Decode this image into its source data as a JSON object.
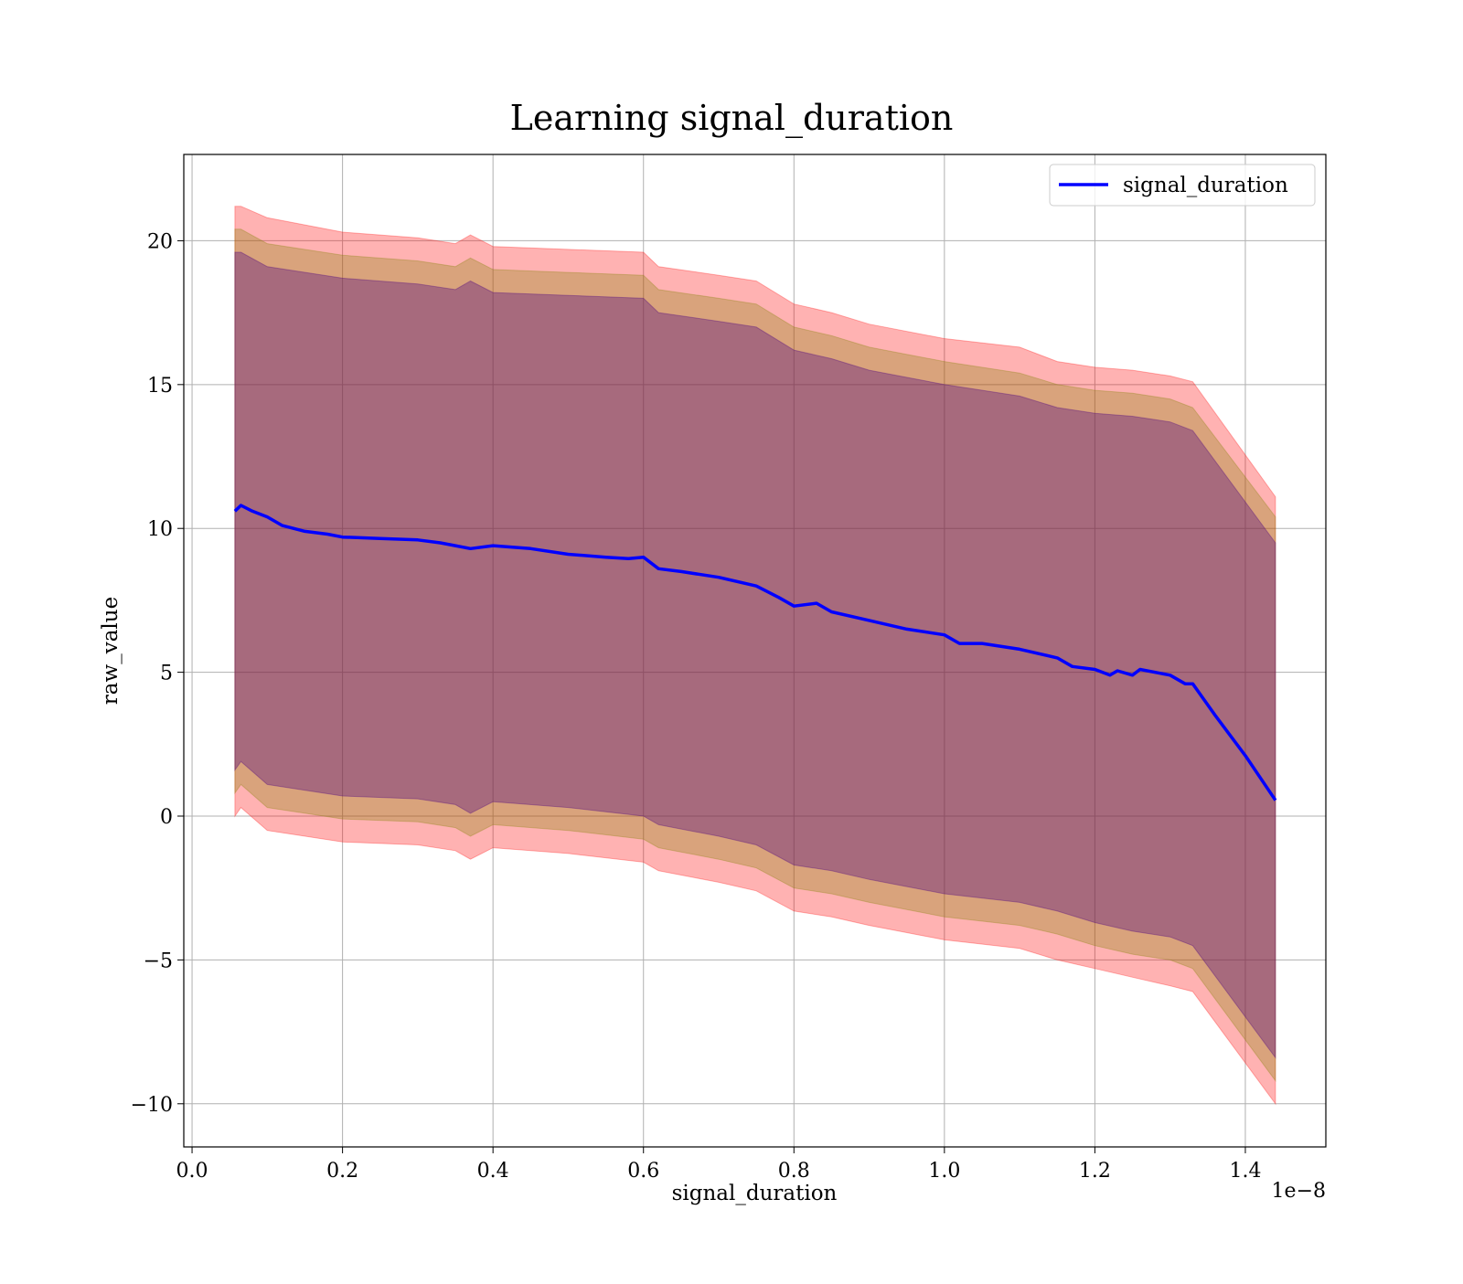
{
  "chart_data": {
    "type": "line",
    "title": "Learning signal_duration",
    "xlabel": "signal_duration",
    "ylabel": "raw_value",
    "x_offset_text": "1e−8",
    "xlim": [
      -0.011,
      1.507
    ],
    "ylim": [
      -11.5,
      23
    ],
    "x_ticks": [
      0.0,
      0.2,
      0.4,
      0.6,
      0.8,
      1.0,
      1.2,
      1.4
    ],
    "x_tick_labels": [
      "0.0",
      "0.2",
      "0.4",
      "0.6",
      "0.8",
      "1.0",
      "1.2",
      "1.4"
    ],
    "y_ticks": [
      -10,
      -5,
      0,
      5,
      10,
      15,
      20
    ],
    "y_tick_labels": [
      "−10",
      "−5",
      "0",
      "5",
      "10",
      "15",
      "20"
    ],
    "grid": true,
    "legend_position": "top-right",
    "series": [
      {
        "name": "signal_duration",
        "color": "#0000ff",
        "x": [
          0.057,
          0.065,
          0.08,
          0.1,
          0.12,
          0.15,
          0.18,
          0.2,
          0.25,
          0.3,
          0.33,
          0.35,
          0.37,
          0.4,
          0.45,
          0.5,
          0.55,
          0.58,
          0.6,
          0.62,
          0.65,
          0.7,
          0.75,
          0.78,
          0.8,
          0.83,
          0.85,
          0.9,
          0.95,
          1.0,
          1.02,
          1.05,
          1.1,
          1.15,
          1.17,
          1.2,
          1.22,
          1.23,
          1.25,
          1.26,
          1.3,
          1.32,
          1.33,
          1.36,
          1.4,
          1.44
        ],
        "y": [
          10.6,
          10.8,
          10.6,
          10.4,
          10.1,
          9.9,
          9.8,
          9.7,
          9.65,
          9.6,
          9.5,
          9.4,
          9.3,
          9.4,
          9.3,
          9.1,
          9.0,
          8.95,
          9.0,
          8.6,
          8.5,
          8.3,
          8.0,
          7.6,
          7.3,
          7.4,
          7.1,
          6.8,
          6.5,
          6.3,
          6.0,
          6.0,
          5.8,
          5.5,
          5.2,
          5.1,
          4.9,
          5.05,
          4.9,
          5.1,
          4.9,
          4.6,
          4.6,
          3.5,
          2.1,
          0.55
        ]
      }
    ],
    "bands": [
      {
        "color": "#ff0000",
        "opacity": 0.3,
        "x": [
          0.057,
          0.065,
          0.1,
          0.2,
          0.3,
          0.35,
          0.37,
          0.4,
          0.5,
          0.6,
          0.62,
          0.7,
          0.75,
          0.8,
          0.85,
          0.9,
          1.0,
          1.1,
          1.15,
          1.2,
          1.25,
          1.3,
          1.33,
          1.44
        ],
        "upper": [
          21.2,
          21.2,
          20.8,
          20.3,
          20.1,
          19.9,
          20.2,
          19.8,
          19.7,
          19.6,
          19.1,
          18.8,
          18.6,
          17.8,
          17.5,
          17.1,
          16.6,
          16.3,
          15.8,
          15.6,
          15.5,
          15.3,
          15.1,
          11.1
        ],
        "lower": [
          0.0,
          0.3,
          -0.5,
          -0.9,
          -1.0,
          -1.2,
          -1.5,
          -1.1,
          -1.3,
          -1.6,
          -1.9,
          -2.3,
          -2.6,
          -3.3,
          -3.5,
          -3.8,
          -4.3,
          -4.6,
          -5.0,
          -5.3,
          -5.6,
          -5.9,
          -6.1,
          -10.0
        ]
      },
      {
        "color": "#808000",
        "opacity": 0.3,
        "x": [
          0.057,
          0.065,
          0.1,
          0.2,
          0.3,
          0.35,
          0.37,
          0.4,
          0.5,
          0.6,
          0.62,
          0.7,
          0.75,
          0.8,
          0.85,
          0.9,
          1.0,
          1.1,
          1.15,
          1.2,
          1.25,
          1.3,
          1.33,
          1.44
        ],
        "upper": [
          20.4,
          20.4,
          19.9,
          19.5,
          19.3,
          19.1,
          19.4,
          19.0,
          18.9,
          18.8,
          18.3,
          18.0,
          17.8,
          17.0,
          16.7,
          16.3,
          15.8,
          15.4,
          15.0,
          14.8,
          14.7,
          14.5,
          14.2,
          10.4
        ],
        "lower": [
          0.8,
          1.1,
          0.3,
          -0.1,
          -0.2,
          -0.4,
          -0.7,
          -0.3,
          -0.5,
          -0.8,
          -1.1,
          -1.5,
          -1.8,
          -2.5,
          -2.7,
          -3.0,
          -3.5,
          -3.8,
          -4.1,
          -4.5,
          -4.8,
          -5.0,
          -5.3,
          -9.2
        ]
      },
      {
        "color": "#4b0082",
        "opacity": 0.35,
        "x": [
          0.057,
          0.065,
          0.1,
          0.2,
          0.3,
          0.35,
          0.37,
          0.4,
          0.5,
          0.6,
          0.62,
          0.7,
          0.75,
          0.8,
          0.85,
          0.9,
          1.0,
          1.1,
          1.15,
          1.2,
          1.25,
          1.3,
          1.33,
          1.44
        ],
        "upper": [
          19.6,
          19.6,
          19.1,
          18.7,
          18.5,
          18.3,
          18.6,
          18.2,
          18.1,
          18.0,
          17.5,
          17.2,
          17.0,
          16.2,
          15.9,
          15.5,
          15.0,
          14.6,
          14.2,
          14.0,
          13.9,
          13.7,
          13.4,
          9.5
        ],
        "lower": [
          1.6,
          1.9,
          1.1,
          0.7,
          0.6,
          0.4,
          0.1,
          0.5,
          0.3,
          0.0,
          -0.3,
          -0.7,
          -1.0,
          -1.7,
          -1.9,
          -2.2,
          -2.7,
          -3.0,
          -3.3,
          -3.7,
          -4.0,
          -4.2,
          -4.5,
          -8.4
        ]
      }
    ]
  }
}
